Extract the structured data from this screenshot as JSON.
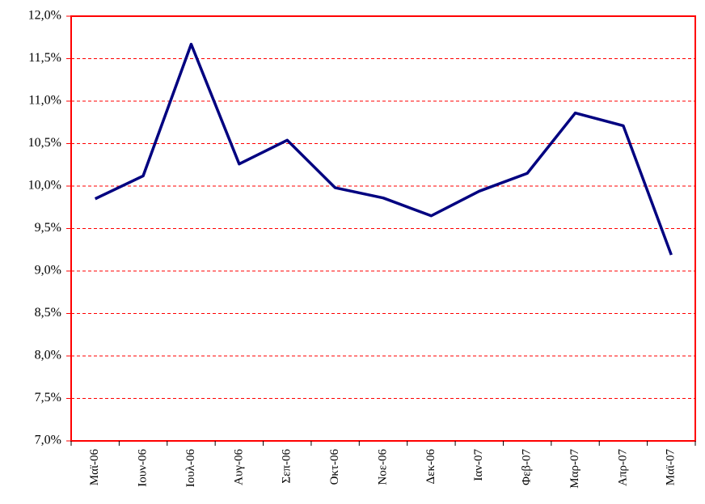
{
  "chart_data": {
    "type": "line",
    "categories": [
      "Μαϊ-06",
      "Ιουν-06",
      "Ιουλ-06",
      "Αυγ-06",
      "Σεπ-06",
      "Οκτ-06",
      "Νοε-06",
      "Δεκ-06",
      "Ιαν-07",
      "Φεβ-07",
      "Μαρ-07",
      "Απρ-07",
      "Μαϊ-07"
    ],
    "series": [
      {
        "color": "#000080",
        "values": [
          9.85,
          10.12,
          11.67,
          10.26,
          10.54,
          9.98,
          9.86,
          9.65,
          9.94,
          10.15,
          10.86,
          10.71,
          9.19
        ]
      }
    ],
    "ylim": [
      7.0,
      12.0
    ],
    "yticks": [
      {
        "value": 7.0,
        "label": "7,0%"
      },
      {
        "value": 7.5,
        "label": "7,5%"
      },
      {
        "value": 8.0,
        "label": "8,0%"
      },
      {
        "value": 8.5,
        "label": "8,5%"
      },
      {
        "value": 9.0,
        "label": "9,0%"
      },
      {
        "value": 9.5,
        "label": "9,5%"
      },
      {
        "value": 10.0,
        "label": "10,0%"
      },
      {
        "value": 10.5,
        "label": "10,5%"
      },
      {
        "value": 11.0,
        "label": "11,0%"
      },
      {
        "value": 11.5,
        "label": "11,5%"
      },
      {
        "value": 12.0,
        "label": "12,0%"
      }
    ],
    "grid": true,
    "grid_color": "#ff0000",
    "axis_color": "#ff0000"
  }
}
